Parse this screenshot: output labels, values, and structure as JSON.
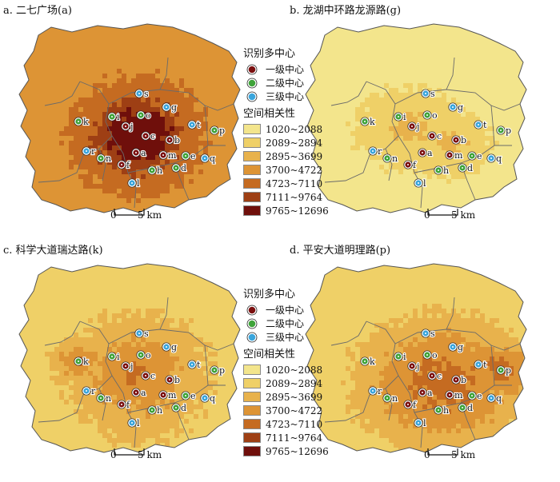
{
  "panels": [
    {
      "title": "a. 二七广场(a)",
      "scheme": [
        3,
        3,
        4,
        4,
        5,
        6,
        6
      ]
    },
    {
      "title": "b. 龙湖中环路龙源路(g)",
      "scheme": [
        0,
        0,
        1,
        1,
        1,
        2,
        2
      ]
    },
    {
      "title": "c. 科学大道瑞达路(k)",
      "scheme": [
        1,
        1,
        2,
        2,
        3,
        3,
        4
      ]
    },
    {
      "title": "d. 平安大道明理路(p)",
      "scheme": [
        1,
        2,
        2,
        3,
        3,
        4,
        4
      ]
    }
  ],
  "legend": {
    "centers_title": "识别多中心",
    "level1": "一级中心",
    "level2": "二级中心",
    "level3": "三级中心",
    "corr_title": "空间相关性",
    "classes": [
      "1020~2088",
      "2089~2894",
      "2895~3699",
      "3700~4722",
      "4723~7110",
      "7111~9764",
      "9765~12696"
    ],
    "class_colors": [
      "#f3e58c",
      "#efd067",
      "#e8b24c",
      "#dd9435",
      "#c56b21",
      "#9e3f14",
      "#6f0f0b"
    ]
  },
  "center_colors": {
    "level1": "#7b1010",
    "level2": "#3fa33a",
    "level3": "#3aa5dc"
  },
  "scale": {
    "zero": "0",
    "label": "5 km"
  },
  "centers": [
    {
      "id": "a",
      "level": 1
    },
    {
      "id": "b",
      "level": 1
    },
    {
      "id": "c",
      "level": 1
    },
    {
      "id": "f",
      "level": 1
    },
    {
      "id": "j",
      "level": 1
    },
    {
      "id": "m",
      "level": 1
    },
    {
      "id": "d",
      "level": 2
    },
    {
      "id": "e",
      "level": 2
    },
    {
      "id": "h",
      "level": 2
    },
    {
      "id": "i",
      "level": 2
    },
    {
      "id": "k",
      "level": 2
    },
    {
      "id": "n",
      "level": 2
    },
    {
      "id": "o",
      "level": 2
    },
    {
      "id": "p",
      "level": 2
    },
    {
      "id": "g",
      "level": 3
    },
    {
      "id": "l",
      "level": 3
    },
    {
      "id": "q",
      "level": 3
    },
    {
      "id": "r",
      "level": 3
    },
    {
      "id": "s",
      "level": 3
    },
    {
      "id": "t",
      "level": 3
    }
  ]
}
